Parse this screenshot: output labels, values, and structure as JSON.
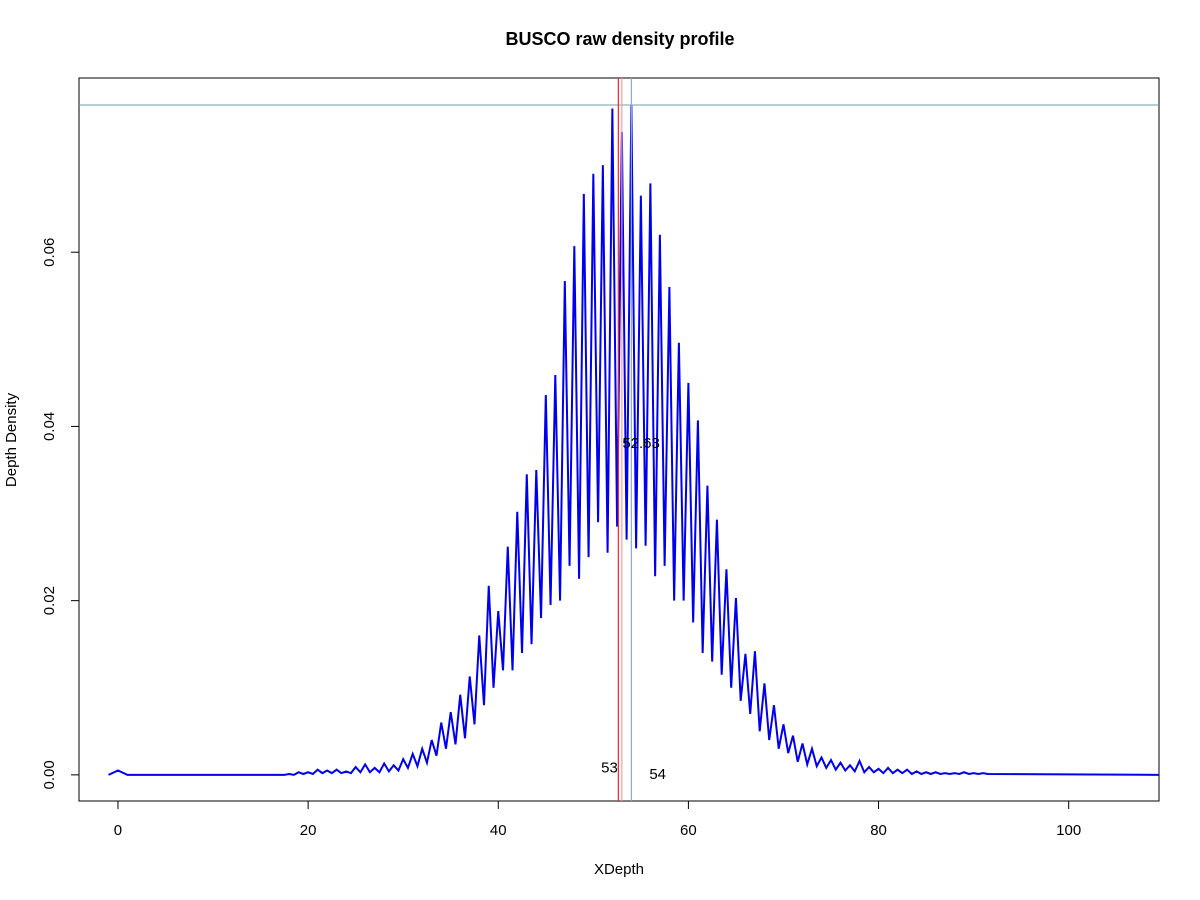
{
  "chart_data": {
    "type": "line",
    "title": "BUSCO raw density profile",
    "x_label": "XDepth",
    "y_label": "Depth Density",
    "color": "#0000ee",
    "xlim": [
      -4.1,
      109.5
    ],
    "ylim": [
      -0.003,
      0.08
    ],
    "xticks": [
      0,
      20,
      40,
      60,
      80,
      100
    ],
    "yticks": [
      {
        "value": 0,
        "label": "0.00"
      },
      {
        "value": 0.02,
        "label": "0.02"
      },
      {
        "value": 0.04,
        "label": "0.04"
      },
      {
        "value": 0.06,
        "label": "0.06"
      }
    ],
    "hline": {
      "value": 0.0769,
      "color": "#6f9fa8"
    },
    "vlines": [
      {
        "value": 52.63,
        "color": "#ff2020",
        "label": "52.63",
        "label_color": "#e8003a"
      },
      {
        "value": 53,
        "color": "#f2a0a0",
        "label": "53",
        "label_color": "#c0c0c0"
      },
      {
        "value": 54,
        "color": "#8aa8d8",
        "label": "54",
        "label_color": "#4a80a8"
      }
    ],
    "x": [
      -1,
      0,
      1,
      17.5,
      18,
      18.5,
      19,
      19.5,
      20,
      20.5,
      21,
      21.5,
      22,
      22.5,
      23,
      23.5,
      24,
      24.5,
      25,
      25.5,
      26,
      26.5,
      27,
      27.5,
      28,
      28.5,
      29,
      29.5,
      30,
      30.5,
      31,
      31.5,
      32,
      32.5,
      33,
      33.5,
      34,
      34.5,
      35,
      35.5,
      36,
      36.5,
      37,
      37.5,
      38,
      38.5,
      39,
      39.5,
      40,
      40.5,
      41,
      41.5,
      42,
      42.5,
      43,
      43.5,
      44,
      44.5,
      45,
      45.5,
      46,
      46.5,
      47,
      47.5,
      48,
      48.5,
      49,
      49.5,
      50,
      50.5,
      51,
      51.5,
      52,
      52.5,
      53,
      53.5,
      54,
      54.5,
      55,
      55.5,
      56,
      56.5,
      57,
      57.5,
      58,
      58.5,
      59,
      59.5,
      60,
      60.5,
      61,
      61.5,
      62,
      62.5,
      63,
      63.5,
      64,
      64.5,
      65,
      65.5,
      66,
      66.5,
      67,
      67.5,
      68,
      68.5,
      69,
      69.5,
      70,
      70.5,
      71,
      71.5,
      72,
      72.5,
      73,
      73.5,
      74,
      74.5,
      75,
      75.5,
      76,
      76.5,
      77,
      77.5,
      78,
      78.5,
      79,
      79.5,
      80,
      80.5,
      81,
      81.5,
      82,
      82.5,
      83,
      83.5,
      84,
      84.5,
      85,
      85.5,
      86,
      86.5,
      87,
      87.5,
      88,
      88.5,
      89,
      89.5,
      90,
      90.5,
      91,
      91.5,
      110
    ],
    "values": [
      0,
      0.0005,
      0,
      0,
      0.0001,
      0,
      0.0003,
      0.0001,
      0.0003,
      0.0001,
      0.0006,
      0.0002,
      0.0005,
      0.0002,
      0.0006,
      0.0002,
      0.0004,
      0.0002,
      0.0009,
      0.0003,
      0.0012,
      0.0003,
      0.0008,
      0.0003,
      0.0013,
      0.0004,
      0.0011,
      0.0005,
      0.0018,
      0.0008,
      0.0024,
      0.001,
      0.003,
      0.0014,
      0.004,
      0.0022,
      0.006,
      0.003,
      0.0072,
      0.0035,
      0.0092,
      0.0042,
      0.0113,
      0.0058,
      0.016,
      0.008,
      0.0217,
      0.01,
      0.0188,
      0.012,
      0.0262,
      0.012,
      0.0302,
      0.014,
      0.0345,
      0.015,
      0.035,
      0.018,
      0.0436,
      0.0195,
      0.0459,
      0.02,
      0.0567,
      0.024,
      0.0607,
      0.0225,
      0.0667,
      0.025,
      0.069,
      0.029,
      0.07,
      0.0255,
      0.0765,
      0.0285,
      0.0738,
      0.027,
      0.0769,
      0.026,
      0.0665,
      0.0263,
      0.0679,
      0.0228,
      0.062,
      0.024,
      0.056,
      0.02,
      0.0496,
      0.02,
      0.045,
      0.0175,
      0.0407,
      0.014,
      0.0332,
      0.013,
      0.0293,
      0.0115,
      0.0236,
      0.01,
      0.0203,
      0.0085,
      0.0139,
      0.007,
      0.0142,
      0.005,
      0.0105,
      0.004,
      0.008,
      0.003,
      0.0058,
      0.0025,
      0.0045,
      0.0015,
      0.0036,
      0.0012,
      0.003,
      0.001,
      0.002,
      0.0008,
      0.0017,
      0.0006,
      0.0014,
      0.0005,
      0.0011,
      0.0004,
      0.0016,
      0.0003,
      0.0009,
      0.0003,
      0.0007,
      0.0002,
      0.0008,
      0.0002,
      0.0006,
      0.0002,
      0.0006,
      0.0001,
      0.0004,
      0.0001,
      0.0003,
      0.0001,
      0.0003,
      0.0001,
      0.0002,
      0.0001,
      0.0002,
      0.0001,
      0.0003,
      0.0001,
      0.0002,
      0.0001,
      0.0002,
      0.0001,
      0
    ]
  }
}
